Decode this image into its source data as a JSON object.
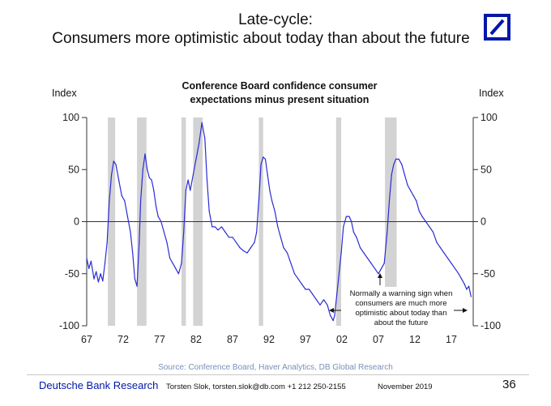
{
  "header": {
    "title_line1": "Late-cycle:",
    "title_line2": "Consumers more optimistic about today than about the future"
  },
  "colors": {
    "brand": "#0018a8",
    "series": "#2b2bd6",
    "recession": "#d3d3d3"
  },
  "chart_data": {
    "type": "line",
    "title_line1": "Conference Board confidence consumer",
    "title_line2": "expectations minus present situation",
    "ylabel_left": "Index",
    "ylabel_right": "Index",
    "ylim": [
      -100,
      100
    ],
    "yticks": [
      100,
      50,
      0,
      -50,
      -100
    ],
    "xlim": [
      1967,
      2020
    ],
    "xticks": [
      1967,
      1972,
      1977,
      1982,
      1987,
      1992,
      1997,
      2002,
      2007,
      2012,
      2017
    ],
    "xtick_labels": [
      "67",
      "72",
      "77",
      "82",
      "87",
      "92",
      "97",
      "02",
      "07",
      "12",
      "17"
    ],
    "recessions": [
      [
        1969.9,
        1970.9
      ],
      [
        1973.9,
        1975.2
      ],
      [
        1980.0,
        1980.6
      ],
      [
        1981.6,
        1982.9
      ],
      [
        1990.6,
        1991.2
      ],
      [
        2001.2,
        2001.9
      ],
      [
        2007.9,
        2009.5
      ]
    ],
    "series": [
      {
        "name": "Expectations minus present situation",
        "x": [
          1967.0,
          1967.3,
          1967.6,
          1968.0,
          1968.3,
          1968.6,
          1968.9,
          1969.2,
          1969.5,
          1969.8,
          1970.1,
          1970.4,
          1970.7,
          1971.0,
          1971.4,
          1971.8,
          1972.2,
          1972.6,
          1973.0,
          1973.3,
          1973.6,
          1973.9,
          1974.2,
          1974.4,
          1974.7,
          1975.0,
          1975.3,
          1975.6,
          1975.9,
          1976.2,
          1976.5,
          1976.8,
          1977.2,
          1977.6,
          1978.0,
          1978.4,
          1978.8,
          1979.2,
          1979.6,
          1980.0,
          1980.3,
          1980.6,
          1980.9,
          1981.2,
          1981.6,
          1982.0,
          1982.4,
          1982.8,
          1983.2,
          1983.5,
          1983.8,
          1984.2,
          1984.6,
          1985.0,
          1985.5,
          1986.0,
          1986.5,
          1987.0,
          1987.5,
          1988.0,
          1988.5,
          1989.0,
          1989.5,
          1990.0,
          1990.3,
          1990.6,
          1990.9,
          1991.2,
          1991.5,
          1991.8,
          1992.1,
          1992.4,
          1992.8,
          1993.2,
          1993.6,
          1994.0,
          1994.5,
          1995.0,
          1995.5,
          1996.0,
          1996.5,
          1997.0,
          1997.5,
          1998.0,
          1998.5,
          1999.0,
          1999.5,
          2000.0,
          2000.4,
          2000.8,
          2001.0,
          2001.3,
          2001.6,
          2001.9,
          2002.2,
          2002.6,
          2003.0,
          2003.3,
          2003.6,
          2004.0,
          2004.5,
          2005.0,
          2005.5,
          2006.0,
          2006.5,
          2007.0,
          2007.4,
          2007.8,
          2008.2,
          2008.5,
          2008.8,
          2009.1,
          2009.4,
          2009.8,
          2010.2,
          2010.6,
          2011.0,
          2011.4,
          2011.8,
          2012.2,
          2012.6,
          2013.0,
          2013.5,
          2014.0,
          2014.5,
          2015.0,
          2015.5,
          2016.0,
          2016.5,
          2017.0,
          2017.5,
          2018.0,
          2018.4,
          2018.8,
          2019.1,
          2019.4,
          2019.7
        ],
        "values": [
          -35,
          -45,
          -38,
          -55,
          -48,
          -58,
          -50,
          -57,
          -40,
          -20,
          20,
          45,
          58,
          55,
          40,
          25,
          20,
          5,
          -10,
          -30,
          -55,
          -62,
          -20,
          20,
          50,
          65,
          50,
          42,
          40,
          30,
          15,
          5,
          0,
          -10,
          -20,
          -35,
          -40,
          -45,
          -50,
          -40,
          -10,
          30,
          40,
          30,
          45,
          60,
          75,
          95,
          80,
          40,
          10,
          -5,
          -5,
          -8,
          -5,
          -10,
          -15,
          -15,
          -20,
          -25,
          -28,
          -30,
          -25,
          -20,
          -10,
          20,
          55,
          62,
          60,
          45,
          30,
          20,
          10,
          -5,
          -15,
          -25,
          -30,
          -40,
          -50,
          -55,
          -60,
          -65,
          -65,
          -70,
          -75,
          -80,
          -75,
          -80,
          -90,
          -95,
          -90,
          -70,
          -50,
          -30,
          -5,
          5,
          5,
          0,
          -10,
          -15,
          -25,
          -30,
          -35,
          -40,
          -45,
          -50,
          -45,
          -40,
          -10,
          20,
          45,
          55,
          60,
          60,
          55,
          45,
          35,
          30,
          25,
          20,
          10,
          5,
          0,
          -5,
          -10,
          -20,
          -25,
          -30,
          -35,
          -40,
          -45,
          -50,
          -55,
          -60,
          -65,
          -62,
          -72
        ]
      }
    ],
    "annotation": {
      "lines": [
        "Normally a warning sign when",
        "consumers are much more",
        "optimistic about today than",
        "about the future"
      ]
    }
  },
  "source": "Source: Conference Board, Haver Analytics, DB Global Research",
  "footer": {
    "brand": "Deutsche Bank Research",
    "author": "Torsten Slok, torsten.slok@db.com  +1 212 250-2155",
    "date": "November 2019",
    "page": "36"
  }
}
